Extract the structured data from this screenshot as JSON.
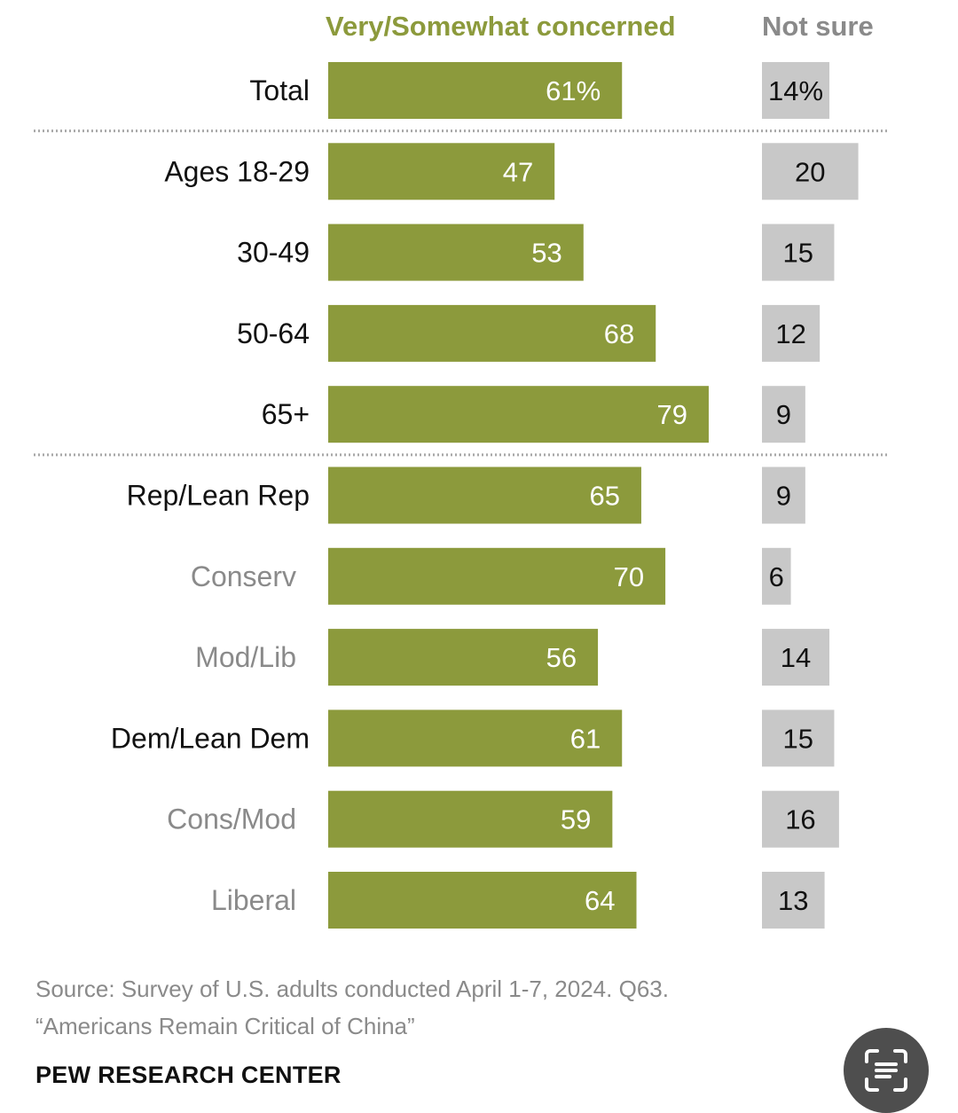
{
  "chart_data": {
    "type": "bar",
    "columns": {
      "concerned": {
        "header": "Very/Somewhat concerned",
        "color": "#8c9a3c"
      },
      "not_sure": {
        "header": "Not sure",
        "color": "#c8c8c8"
      }
    },
    "rows": [
      {
        "label": "Total",
        "concerned": 61,
        "concerned_label": "61%",
        "not_sure": 14,
        "not_sure_label": "14%",
        "style": "main"
      },
      {
        "label": "Ages 18-29",
        "concerned": 47,
        "concerned_label": "47",
        "not_sure": 20,
        "not_sure_label": "20",
        "style": "main"
      },
      {
        "label": "30-49",
        "concerned": 53,
        "concerned_label": "53",
        "not_sure": 15,
        "not_sure_label": "15",
        "style": "main"
      },
      {
        "label": "50-64",
        "concerned": 68,
        "concerned_label": "68",
        "not_sure": 12,
        "not_sure_label": "12",
        "style": "main"
      },
      {
        "label": "65+",
        "concerned": 79,
        "concerned_label": "79",
        "not_sure": 9,
        "not_sure_label": "9",
        "style": "main"
      },
      {
        "label": "Rep/Lean Rep",
        "concerned": 65,
        "concerned_label": "65",
        "not_sure": 9,
        "not_sure_label": "9",
        "style": "main"
      },
      {
        "label": "Conserv",
        "concerned": 70,
        "concerned_label": "70",
        "not_sure": 6,
        "not_sure_label": "6",
        "style": "sub"
      },
      {
        "label": "Mod/Lib",
        "concerned": 56,
        "concerned_label": "56",
        "not_sure": 14,
        "not_sure_label": "14",
        "style": "sub"
      },
      {
        "label": "Dem/Lean Dem",
        "concerned": 61,
        "concerned_label": "61",
        "not_sure": 15,
        "not_sure_label": "15",
        "style": "main"
      },
      {
        "label": "Cons/Mod",
        "concerned": 59,
        "concerned_label": "59",
        "not_sure": 16,
        "not_sure_label": "16",
        "style": "sub"
      },
      {
        "label": "Liberal",
        "concerned": 64,
        "concerned_label": "64",
        "not_sure": 13,
        "not_sure_label": "13",
        "style": "sub"
      }
    ],
    "separators_after": [
      "Total",
      "65+"
    ],
    "value_range": [
      0,
      100
    ]
  },
  "footer": {
    "source_line1": "Source: Survey of U.S. adults conducted April 1-7, 2024. Q63.",
    "source_line2": "“Americans Remain Critical of China”",
    "brand": "PEW RESEARCH CENTER"
  },
  "overlay": {
    "icon": "scan-text-icon"
  }
}
